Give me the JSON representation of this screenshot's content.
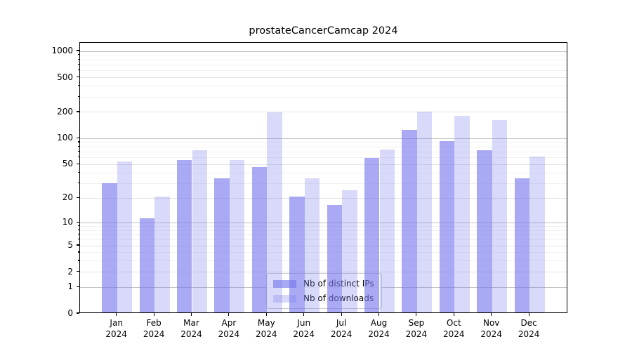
{
  "title": "prostateCancerCamcap 2024",
  "legend": {
    "items": [
      {
        "label": "Nb of distinct IPs",
        "color": "rgba(119,119,238,0.63)"
      },
      {
        "label": "Nb of downloads",
        "color": "rgba(119,119,238,0.28)"
      }
    ]
  },
  "x_axis": {
    "months": [
      "Jan",
      "Feb",
      "Mar",
      "Apr",
      "May",
      "Jun",
      "Jul",
      "Aug",
      "Sep",
      "Oct",
      "Nov",
      "Dec"
    ],
    "year": "2024"
  },
  "chart_data": {
    "type": "bar",
    "title": "prostateCancerCamcap 2024",
    "categories": [
      "Jan 2024",
      "Feb 2024",
      "Mar 2024",
      "Apr 2024",
      "May 2024",
      "Jun 2024",
      "Jul 2024",
      "Aug 2024",
      "Sep 2024",
      "Oct 2024",
      "Nov 2024",
      "Dec 2024"
    ],
    "series": [
      {
        "name": "Nb of distinct IPs",
        "color": "rgba(119,119,238,0.63)",
        "values": [
          29,
          11,
          54,
          33,
          45,
          20,
          16,
          57,
          122,
          90,
          71,
          33
        ]
      },
      {
        "name": "Nb of downloads",
        "color": "rgba(119,119,238,0.28)",
        "values": [
          52,
          20,
          70,
          54,
          192,
          33,
          24,
          72,
          195,
          176,
          157,
          60
        ]
      }
    ],
    "yscale": "log1p",
    "ylim": [
      0,
      1250
    ],
    "y_ticks": [
      0,
      1,
      2,
      5,
      10,
      20,
      50,
      100,
      200,
      500,
      1000
    ],
    "y_major_gridlines": [
      1,
      10,
      100,
      1000
    ],
    "y_minor_ticks": [
      3,
      4,
      6,
      7,
      8,
      9,
      30,
      40,
      60,
      70,
      80,
      90,
      300,
      400,
      600,
      700,
      800,
      900
    ],
    "grid": true,
    "legend_position": "lower-center",
    "xlabel": "",
    "ylabel": ""
  }
}
